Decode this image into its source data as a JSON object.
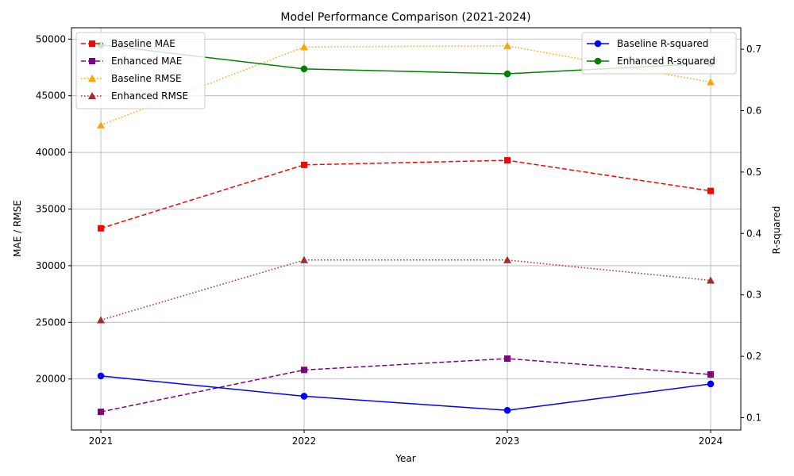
{
  "chart_data": {
    "type": "line",
    "title": "Model Performance Comparison (2021-2024)",
    "xlabel": "Year",
    "ylabel_left": "MAE / RMSE",
    "ylabel_right": "R-squared",
    "x": [
      "2021",
      "2022",
      "2023",
      "2024"
    ],
    "ylim_left": [
      15500,
      51000
    ],
    "ylim_right": [
      0.08,
      0.735
    ],
    "yticks_left": [
      20000,
      25000,
      30000,
      35000,
      40000,
      45000,
      50000
    ],
    "yticks_right": [
      0.1,
      0.2,
      0.3,
      0.4,
      0.5,
      0.6,
      0.7
    ],
    "grid": true,
    "series_left": [
      {
        "name": "Baseline MAE",
        "values": [
          33300,
          38900,
          39300,
          36600
        ],
        "color": "#ff0000",
        "dash": "6,3",
        "marker": "square"
      },
      {
        "name": "Enhanced MAE",
        "values": [
          17100,
          20800,
          21800,
          20400
        ],
        "color": "#800080",
        "dash": "6,3",
        "marker": "square"
      },
      {
        "name": "Baseline RMSE",
        "values": [
          42400,
          49300,
          49400,
          46200
        ],
        "color": "#ffa500",
        "dash": "1.5,2.5",
        "marker": "triangle"
      },
      {
        "name": "Enhanced RMSE",
        "values": [
          25200,
          30500,
          30500,
          28700
        ],
        "color": "#a52a2a",
        "dash": "1.5,2.5",
        "marker": "triangle"
      }
    ],
    "series_right": [
      {
        "name": "Baseline R-squared",
        "values": [
          0.168,
          0.135,
          0.112,
          0.155
        ],
        "color": "#0000ff",
        "dash": "",
        "marker": "circle"
      },
      {
        "name": "Enhanced R-squared",
        "values": [
          0.707,
          0.668,
          0.66,
          0.677
        ],
        "color": "#008000",
        "dash": "",
        "marker": "circle"
      }
    ],
    "legend_left_position": "upper-left",
    "legend_right_position": "upper-right"
  }
}
